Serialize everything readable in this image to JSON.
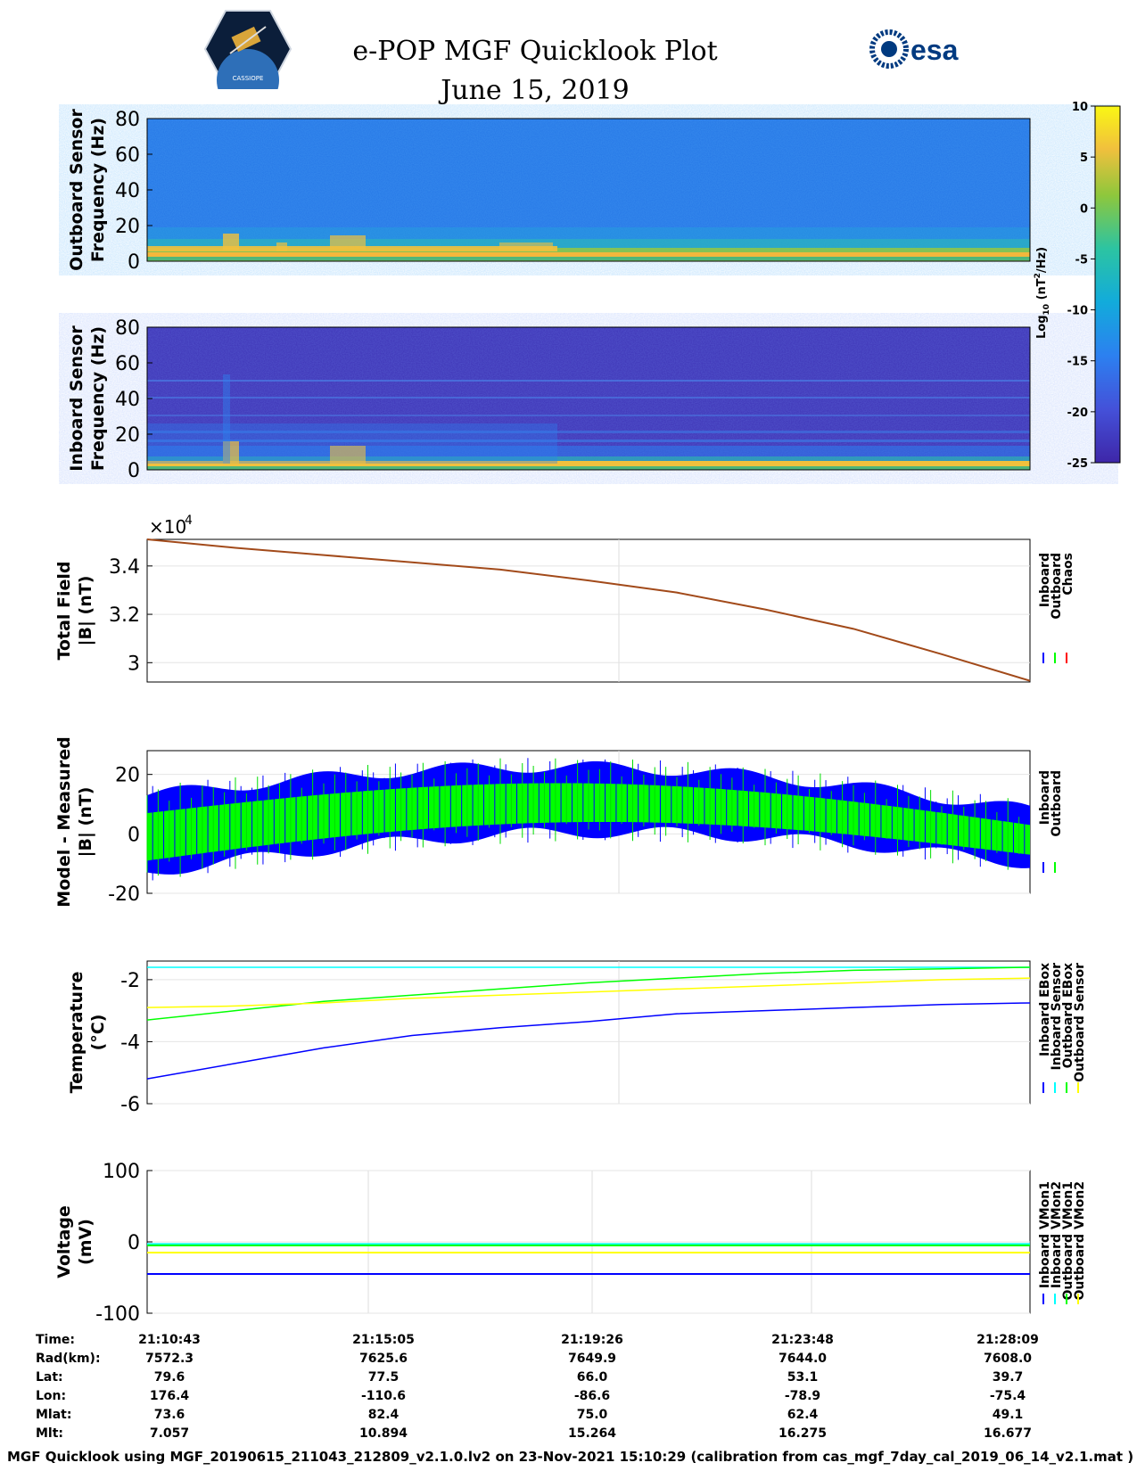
{
  "header": {
    "title": "e-POP MGF Quicklook Plot",
    "date": "June 15, 2019",
    "esa_logo_text": "esa",
    "sat_logo_text": "CASSIOPE"
  },
  "chart_data": [
    {
      "type": "heatmap",
      "name": "outboard-spectrogram",
      "ylabel": [
        "Outboard Sensor",
        "Frequency (Hz)"
      ],
      "yticks": [
        0,
        20,
        40,
        60,
        80
      ],
      "ylim": [
        0,
        80
      ]
    },
    {
      "type": "heatmap",
      "name": "inboard-spectrogram",
      "ylabel": [
        "Inboard Sensor",
        "Frequency (Hz)"
      ],
      "yticks": [
        0,
        20,
        40,
        60,
        80
      ],
      "ylim": [
        0,
        80
      ]
    },
    {
      "type": "colorbar",
      "name": "colorbar",
      "label": "Log10 (nT2/Hz)",
      "ticks": [
        10,
        5,
        0,
        -5,
        -10,
        -15,
        -20,
        -25
      ],
      "range": [
        -25,
        10
      ]
    },
    {
      "type": "line",
      "name": "total-field",
      "ylabel": [
        "Total Field",
        "|B| (nT)"
      ],
      "exponent": "×10",
      "exponent_power": "4",
      "yticks": [
        3,
        3.2,
        3.4
      ],
      "ylim": [
        2.92,
        3.51
      ],
      "legend": [
        "Inboard",
        "Outboard",
        "Chaos"
      ],
      "legend_colors": [
        "#0000ff",
        "#00ff00",
        "#ff0000"
      ],
      "series": [
        {
          "name": "Chaos",
          "x": [
            0,
            0.1,
            0.2,
            0.3,
            0.4,
            0.5,
            0.6,
            0.7,
            0.8,
            0.9,
            1.0
          ],
          "values": [
            3.51,
            3.475,
            3.445,
            3.415,
            3.385,
            3.34,
            3.29,
            3.22,
            3.14,
            3.035,
            2.925
          ]
        }
      ]
    },
    {
      "type": "line",
      "name": "model-measured",
      "ylabel": [
        "Model - Measured",
        "|B| (nT)"
      ],
      "yticks": [
        -20,
        0,
        20
      ],
      "ylim": [
        -20,
        28
      ],
      "legend": [
        "Inboard",
        "Outboard"
      ],
      "legend_colors": [
        "#0000ff",
        "#00ff00"
      ]
    },
    {
      "type": "line",
      "name": "temperature",
      "ylabel": [
        "Temperature",
        "(°C)"
      ],
      "yticks": [
        -6,
        -4,
        -2
      ],
      "ylim": [
        -6,
        -1.4
      ],
      "legend": [
        "Inboard EBox",
        "Inboard Sensor",
        "Outboard EBox",
        "Outboard Sensor"
      ],
      "legend_colors": [
        "#0000ff",
        "#00ffff",
        "#00ff00",
        "#ffff00"
      ],
      "series": [
        {
          "name": "Inboard EBox",
          "x": [
            0,
            0.1,
            0.2,
            0.3,
            0.4,
            0.5,
            0.6,
            0.7,
            0.8,
            0.9,
            1.0
          ],
          "values": [
            -5.2,
            -4.7,
            -4.2,
            -3.8,
            -3.55,
            -3.35,
            -3.1,
            -3.0,
            -2.9,
            -2.8,
            -2.75
          ]
        },
        {
          "name": "Inboard Sensor",
          "x": [
            0,
            1
          ],
          "values": [
            -1.6,
            -1.6
          ]
        },
        {
          "name": "Outboard EBox",
          "x": [
            0,
            0.1,
            0.2,
            0.3,
            0.4,
            0.5,
            0.6,
            0.7,
            0.8,
            0.9,
            1.0
          ],
          "values": [
            -3.3,
            -3.0,
            -2.7,
            -2.5,
            -2.3,
            -2.1,
            -1.95,
            -1.8,
            -1.7,
            -1.65,
            -1.6
          ]
        },
        {
          "name": "Outboard Sensor",
          "x": [
            0,
            0.1,
            0.2,
            0.3,
            0.4,
            0.5,
            0.6,
            0.7,
            0.8,
            0.9,
            1.0
          ],
          "values": [
            -2.9,
            -2.85,
            -2.75,
            -2.6,
            -2.5,
            -2.4,
            -2.3,
            -2.2,
            -2.1,
            -2.0,
            -1.95
          ]
        }
      ]
    },
    {
      "type": "line",
      "name": "voltage",
      "ylabel": [
        "Voltage",
        "(mV)"
      ],
      "yticks": [
        -100,
        0,
        100
      ],
      "ylim": [
        -100,
        100
      ],
      "legend": [
        "Inboard VMon1",
        "Inboard VMon2",
        "Outboard VMon1",
        "Outboard VMon2"
      ],
      "legend_colors": [
        "#0000ff",
        "#00ffff",
        "#00ff00",
        "#ffff00"
      ],
      "series": [
        {
          "name": "Inboard VMon1",
          "x": [
            0,
            1
          ],
          "values": [
            -45,
            -45
          ]
        },
        {
          "name": "Inboard VMon2",
          "x": [
            0,
            1
          ],
          "values": [
            -3,
            -3
          ]
        },
        {
          "name": "Outboard VMon1",
          "x": [
            0,
            1
          ],
          "values": [
            -5,
            -5
          ]
        },
        {
          "name": "Outboard VMon2",
          "x": [
            0,
            1
          ],
          "values": [
            -15,
            -15
          ]
        }
      ]
    }
  ],
  "table": {
    "labels": [
      "Time:",
      "Rad(km):",
      "Lat:",
      "Lon:",
      "Mlat:",
      "Mlt:"
    ],
    "columns": [
      [
        "21:10:43",
        "7572.3",
        "79.6",
        "176.4",
        "73.6",
        "7.057"
      ],
      [
        "21:15:05",
        "7625.6",
        "77.5",
        "-110.6",
        "82.4",
        "10.894"
      ],
      [
        "21:19:26",
        "7649.9",
        "66.0",
        "-86.6",
        "75.0",
        "15.264"
      ],
      [
        "21:23:48",
        "7644.0",
        "53.1",
        "-78.9",
        "62.4",
        "16.275"
      ],
      [
        "21:28:09",
        "7608.0",
        "39.7",
        "-75.4",
        "49.1",
        "16.677"
      ]
    ]
  },
  "footer": "MGF Quicklook using MGF_20190615_211043_212809_v2.1.0.lv2 on 23-Nov-2021 15:10:29 (calibration from cas_mgf_7day_cal_2019_06_14_v2.1.mat )"
}
